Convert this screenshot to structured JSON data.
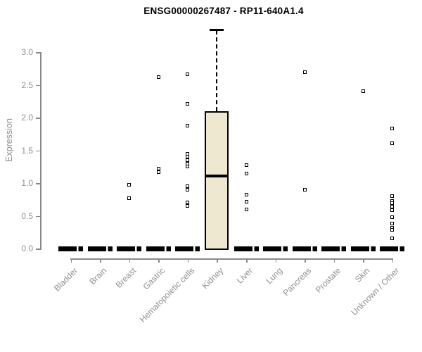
{
  "chart_data": {
    "type": "boxplot",
    "title": "ENSG00000267487 - RP11-640A1.4",
    "ylabel": "Expression",
    "xlabel": "",
    "ylim": [
      0,
      3.4
    ],
    "yticks": [
      0.0,
      0.5,
      1.0,
      1.5,
      2.0,
      2.5,
      3.0
    ],
    "ytick_labels": [
      "0.0",
      "0.5",
      "1.0",
      "1.5",
      "2.0",
      "2.5",
      "3.0"
    ],
    "grid": false,
    "legend": false,
    "categories": [
      "Bladder",
      "Brain",
      "Breast",
      "Gastric",
      "Hematopoietic cells",
      "Kidney",
      "Liver",
      "Lung",
      "Pancreas",
      "Prostate",
      "Skin",
      "Unknown / Other"
    ],
    "boxes": [
      {
        "category": "Bladder",
        "q1": 0,
        "median": 0,
        "q3": 0,
        "whisker_low": 0,
        "whisker_high": 0,
        "outliers": []
      },
      {
        "category": "Brain",
        "q1": 0,
        "median": 0,
        "q3": 0,
        "whisker_low": 0,
        "whisker_high": 0,
        "outliers": []
      },
      {
        "category": "Breast",
        "q1": 0,
        "median": 0,
        "q3": 0,
        "whisker_low": 0,
        "whisker_high": 0,
        "outliers": [
          0.97,
          0.77
        ]
      },
      {
        "category": "Gastric",
        "q1": 0,
        "median": 0,
        "q3": 0,
        "whisker_low": 0,
        "whisker_high": 0,
        "outliers": [
          2.62,
          1.22,
          1.17
        ]
      },
      {
        "category": "Hematopoietic cells",
        "q1": 0,
        "median": 0,
        "q3": 0,
        "whisker_low": 0,
        "whisker_high": 0,
        "outliers": [
          2.66,
          2.21,
          1.88,
          1.45,
          1.4,
          1.35,
          1.3,
          1.25,
          0.95,
          0.9,
          0.7,
          0.65
        ]
      },
      {
        "category": "Kidney",
        "q1": 0,
        "median": 1.11,
        "q3": 2.1,
        "whisker_low": 0,
        "whisker_high": 3.35,
        "outliers": []
      },
      {
        "category": "Liver",
        "q1": 0,
        "median": 0,
        "q3": 0,
        "whisker_low": 0,
        "whisker_high": 0,
        "outliers": [
          1.27,
          1.14,
          0.82,
          0.71,
          0.6
        ]
      },
      {
        "category": "Lung",
        "q1": 0,
        "median": 0,
        "q3": 0,
        "whisker_low": 0,
        "whisker_high": 0,
        "outliers": []
      },
      {
        "category": "Pancreas",
        "q1": 0,
        "median": 0,
        "q3": 0,
        "whisker_low": 0,
        "whisker_high": 0,
        "outliers": [
          2.69,
          0.9
        ]
      },
      {
        "category": "Prostate",
        "q1": 0,
        "median": 0,
        "q3": 0,
        "whisker_low": 0,
        "whisker_high": 0,
        "outliers": []
      },
      {
        "category": "Skin",
        "q1": 0,
        "median": 0,
        "q3": 0,
        "whisker_low": 0,
        "whisker_high": 0,
        "outliers": [
          2.4
        ]
      },
      {
        "category": "Unknown / Other",
        "q1": 0,
        "median": 0,
        "q3": 0,
        "whisker_low": 0,
        "whisker_high": 0,
        "outliers": [
          1.83,
          1.61,
          0.8,
          0.73,
          0.69,
          0.64,
          0.59,
          0.48,
          0.38,
          0.32,
          0.28,
          0.16
        ]
      }
    ],
    "colors": {
      "box_fill": "#EDE8CF",
      "box_border": "#000000",
      "median": "#000000",
      "outlier": "#000000",
      "axis": "#888888",
      "axis_text": "#909090",
      "title_text": "#000000",
      "background": "#ffffff"
    }
  }
}
